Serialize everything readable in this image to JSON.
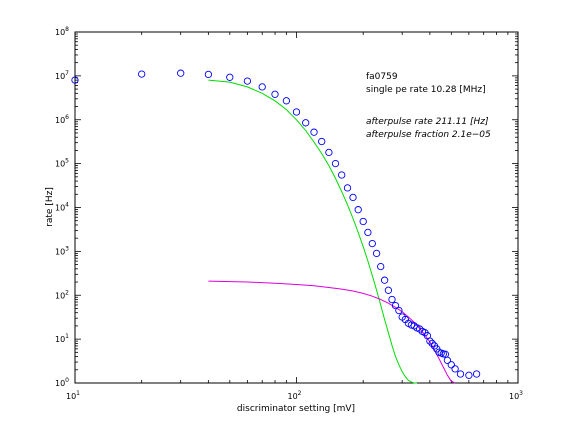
{
  "chart_data": {
    "type": "scatter",
    "xscale": "log",
    "yscale": "log",
    "xlim": [
      10,
      1000
    ],
    "ylim": [
      1,
      100000000
    ],
    "xlabel": "discriminator setting [mV]",
    "ylabel": "rate [Hz]",
    "x_ticks": [
      {
        "value": 10,
        "base": "10",
        "exp": "1"
      },
      {
        "value": 100,
        "base": "10",
        "exp": "2"
      },
      {
        "value": 1000,
        "base": "10",
        "exp": "3"
      }
    ],
    "y_ticks": [
      {
        "value": 1,
        "base": "10",
        "exp": "0"
      },
      {
        "value": 10,
        "base": "10",
        "exp": "1"
      },
      {
        "value": 100,
        "base": "10",
        "exp": "2"
      },
      {
        "value": 1000,
        "base": "10",
        "exp": "3"
      },
      {
        "value": 10000,
        "base": "10",
        "exp": "4"
      },
      {
        "value": 100000,
        "base": "10",
        "exp": "5"
      },
      {
        "value": 1000000,
        "base": "10",
        "exp": "6"
      },
      {
        "value": 10000000,
        "base": "10",
        "exp": "7"
      },
      {
        "value": 100000000,
        "base": "10",
        "exp": "8"
      }
    ],
    "annotations": [
      {
        "text": "fa0759",
        "style": "normal"
      },
      {
        "text": "single pe rate 10.28 [MHz]",
        "style": "normal"
      },
      {
        "text": "afterpulse rate 211.11 [Hz]",
        "style": "italic"
      },
      {
        "text": "afterpulse fraction 2.1e−05",
        "style": "italic"
      }
    ],
    "series": [
      {
        "kind": "markers",
        "marker": "circle-open",
        "color": "#0000ff",
        "x": [
          10,
          20,
          30,
          40,
          50,
          60,
          70,
          80,
          90,
          100,
          110,
          120,
          130,
          140,
          150,
          160,
          170,
          180,
          190,
          200,
          210,
          220,
          230,
          240,
          250,
          260,
          270,
          280,
          290,
          300,
          310,
          320,
          330,
          340,
          350,
          360,
          370,
          380,
          390,
          400,
          410,
          420,
          430,
          440,
          450,
          460,
          470,
          480,
          500,
          520,
          550,
          600,
          650
        ],
        "y": [
          8000000,
          11000000,
          11500000,
          10800000,
          9300000,
          7600000,
          5600000,
          3800000,
          2700000,
          1500000,
          850000,
          520000,
          320000,
          180000,
          100000,
          55000,
          28000,
          17000,
          8900,
          4800,
          2700,
          1500,
          900,
          450,
          220,
          130,
          80,
          58,
          45,
          32,
          28,
          23,
          21,
          20,
          18,
          17,
          15,
          14,
          12,
          9,
          8,
          7,
          6,
          5,
          4.8,
          4.6,
          4.5,
          3.3,
          2.6,
          2.1,
          1.6,
          1.5,
          1.6
        ]
      },
      {
        "kind": "line",
        "color": "#00dd00",
        "x": [
          40,
          50,
          60,
          70,
          80,
          90,
          100,
          110,
          120,
          130,
          140,
          150,
          160,
          170,
          180,
          190,
          200,
          210,
          220,
          230,
          240,
          250,
          260,
          270,
          280,
          290,
          300,
          310,
          320,
          330,
          340,
          350
        ],
        "y": [
          8000000,
          7200000,
          5600000,
          4000000,
          2700000,
          1700000,
          1000000,
          570000,
          310000,
          170000,
          90000,
          46000,
          23000,
          11500,
          5600,
          2700,
          1280,
          600,
          280,
          130,
          60,
          28,
          14,
          7.2,
          4.0,
          2.6,
          1.8,
          1.4,
          1.15,
          1.05,
          1.0,
          1.0
        ]
      },
      {
        "kind": "line",
        "color": "#dd00dd",
        "x": [
          40,
          60,
          80,
          100,
          120,
          140,
          160,
          180,
          200,
          220,
          240,
          260,
          280,
          300,
          320,
          340,
          360,
          380,
          400,
          420,
          440,
          460,
          480,
          500,
          520
        ],
        "y": [
          210,
          200,
          188,
          176,
          165,
          150,
          138,
          125,
          110,
          95,
          80,
          66,
          53,
          42,
          32,
          24,
          17.5,
          12.5,
          8.6,
          5.6,
          3.6,
          2.3,
          1.5,
          1.1,
          1.0
        ]
      }
    ]
  }
}
